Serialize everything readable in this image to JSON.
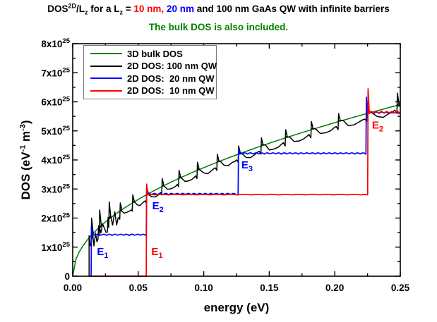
{
  "title": {
    "segments": [
      {
        "t": "DOS"
      },
      {
        "t": "2D",
        "sup": true
      },
      {
        "t": "/L"
      },
      {
        "t": "z",
        "sub": true
      },
      {
        "t": " for a L"
      },
      {
        "t": "z",
        "sub": true
      },
      {
        "t": " = "
      },
      {
        "t": "10 nm,",
        "color": "#ff0000"
      },
      {
        "t": " "
      },
      {
        "t": "20 nm",
        "color": "#0000ff"
      },
      {
        "t": " and 100 nm GaAs QW with infinite barriers"
      }
    ]
  },
  "subtitle": {
    "text": "The bulk DOS is also included.",
    "color": "#008000"
  },
  "chart_data": {
    "type": "line",
    "xlabel": "energy (eV)",
    "ylabel_segments": [
      {
        "t": "DOS (eV"
      },
      {
        "t": "-1",
        "sup": true
      },
      {
        "t": " m"
      },
      {
        "t": "-3",
        "sup": true
      },
      {
        "t": ")"
      }
    ],
    "xlim": [
      0,
      0.25
    ],
    "ylim": [
      0,
      8e+25
    ],
    "y_unit_note": "y values below are in units of 1e25 eV^-1 m^-3",
    "grid": false,
    "x_ticks": [
      {
        "v": 0.0,
        "label": "0.00"
      },
      {
        "v": 0.05,
        "label": "0.05"
      },
      {
        "v": 0.1,
        "label": "0.10"
      },
      {
        "v": 0.15,
        "label": "0.15"
      },
      {
        "v": 0.2,
        "label": "0.20"
      },
      {
        "v": 0.25,
        "label": "0.25"
      }
    ],
    "x_minor_step": 0.025,
    "y_ticks": [
      {
        "v": 0,
        "base": "0",
        "exp": ""
      },
      {
        "v": 1,
        "base": "1x10",
        "exp": "25"
      },
      {
        "v": 2,
        "base": "2x10",
        "exp": "25"
      },
      {
        "v": 3,
        "base": "3x10",
        "exp": "25"
      },
      {
        "v": 4,
        "base": "4x10",
        "exp": "25"
      },
      {
        "v": 5,
        "base": "5x10",
        "exp": "25"
      },
      {
        "v": 6,
        "base": "6x10",
        "exp": "25"
      },
      {
        "v": 7,
        "base": "7x10",
        "exp": "25"
      },
      {
        "v": 8,
        "base": "8x10",
        "exp": "25"
      }
    ],
    "y_minor_step": 0.5,
    "legend": {
      "position": "upper-left",
      "items": [
        {
          "label": "3D bulk DOS",
          "color": "#008000"
        },
        {
          "label": "2D DOS: 100 nm QW",
          "color": "#000000"
        },
        {
          "label": "2D DOS:  20 nm QW",
          "color": "#0000ff"
        },
        {
          "label": "2D DOS:  10 nm QW",
          "color": "#ff0000"
        }
      ]
    },
    "series": [
      {
        "name": "3D bulk DOS",
        "color": "#008000",
        "model": "sqrt",
        "coef_1e25_per_sqrt_eV": 11.81,
        "points": [
          [
            0,
            0
          ],
          [
            0.025,
            1.87
          ],
          [
            0.05,
            2.64
          ],
          [
            0.075,
            3.23
          ],
          [
            0.1,
            3.73
          ],
          [
            0.125,
            4.18
          ],
          [
            0.15,
            4.57
          ],
          [
            0.175,
            4.94
          ],
          [
            0.2,
            5.28
          ],
          [
            0.225,
            5.6
          ],
          [
            0.25,
            5.9
          ]
        ]
      },
      {
        "name": "2D DOS: 100 nm QW",
        "color": "#000000",
        "model": "staircase",
        "data_start_eV": 0.0125,
        "start_value": 1.12,
        "step_height_1e25": 0.28,
        "subband_edges_eV": [
          0.01403,
          0.0202,
          0.02749,
          0.0359,
          0.04544,
          0.0561,
          0.06788,
          0.08078,
          0.09481,
          0.10996,
          0.12623,
          0.14362,
          0.16213,
          0.18176,
          0.20252,
          0.2244,
          0.2474
        ],
        "plateaus_1e25": [
          1.4,
          1.68,
          1.96,
          2.24,
          2.52,
          2.8,
          3.08,
          3.36,
          3.64,
          3.92,
          4.2,
          4.48,
          4.76,
          5.04,
          5.32,
          5.6,
          5.88
        ]
      },
      {
        "name": "2D DOS: 20 nm QW",
        "color": "#0000ff",
        "model": "staircase",
        "data_start_eV": 0.0125,
        "start_value": 0,
        "step_height_1e25": 1.4,
        "subband_edges_eV": [
          0.01403,
          0.0561,
          0.12623,
          0.2238
        ],
        "plateaus_1e25": [
          1.4,
          2.8,
          4.2,
          5.6
        ],
        "overshoot_1e25": [
          0.3,
          0.25,
          0.16,
          0.56
        ]
      },
      {
        "name": "2D DOS: 10 nm QW",
        "color": "#ff0000",
        "model": "staircase",
        "data_start_eV": 0.0125,
        "start_value": 0,
        "step_height_1e25": 2.8,
        "subband_edges_eV": [
          0.0561,
          0.2251
        ],
        "plateaus_1e25": [
          2.8,
          5.6
        ],
        "overshoot_1e25": [
          0.37,
          0.85
        ]
      }
    ],
    "annotations": [
      {
        "label": "E",
        "sub": "1",
        "color": "#0000ff",
        "x_eV": 0.0185,
        "y_1e25": 0.85
      },
      {
        "label": "E",
        "sub": "1",
        "color": "#ff0000",
        "x_eV": 0.06,
        "y_1e25": 0.85
      },
      {
        "label": "E",
        "sub": "2",
        "color": "#0000ff",
        "x_eV": 0.0607,
        "y_1e25": 2.42
      },
      {
        "label": "E",
        "sub": "3",
        "color": "#0000ff",
        "x_eV": 0.1287,
        "y_1e25": 3.83
      },
      {
        "label": "E",
        "sub": "2",
        "color": "#ff0000",
        "x_eV": 0.2284,
        "y_1e25": 5.2
      }
    ]
  }
}
